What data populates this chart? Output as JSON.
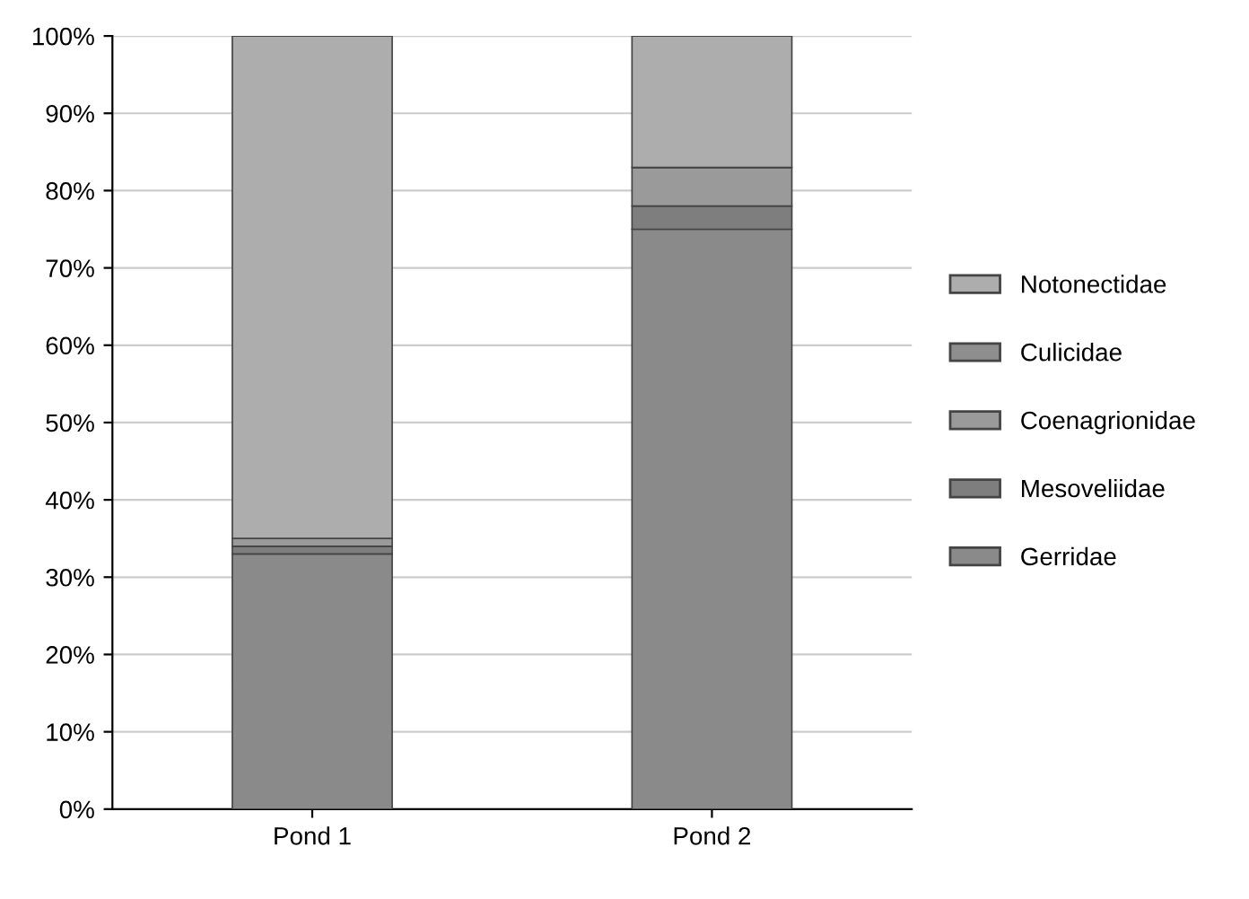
{
  "chart_data": {
    "type": "bar",
    "stacked": true,
    "categories": [
      "Pond 1",
      "Pond 2"
    ],
    "series": [
      {
        "name": "Gerridae",
        "color": "#8a8a8a",
        "values": [
          33,
          75
        ]
      },
      {
        "name": "Mesoveliidae",
        "color": "#7e7e7e",
        "values": [
          1,
          3
        ]
      },
      {
        "name": "Coenagrionidae",
        "color": "#9a9a9a",
        "values": [
          1,
          5
        ]
      },
      {
        "name": "Culicidae",
        "color": "#8e8e8e",
        "values": [
          0,
          0
        ]
      },
      {
        "name": "Notonectidae",
        "color": "#adadad",
        "values": [
          65,
          17
        ]
      }
    ],
    "ylim": [
      0,
      100
    ],
    "yticks": [
      {
        "value": 0,
        "label": "0%"
      },
      {
        "value": 10,
        "label": "10%"
      },
      {
        "value": 20,
        "label": "20%"
      },
      {
        "value": 30,
        "label": "30%"
      },
      {
        "value": 40,
        "label": "40%"
      },
      {
        "value": 50,
        "label": "50%"
      },
      {
        "value": 60,
        "label": "60%"
      },
      {
        "value": 70,
        "label": "70%"
      },
      {
        "value": 80,
        "label": "80%"
      },
      {
        "value": 90,
        "label": "90%"
      },
      {
        "value": 100,
        "label": "100%"
      }
    ],
    "grid": "y",
    "legend": "right"
  }
}
